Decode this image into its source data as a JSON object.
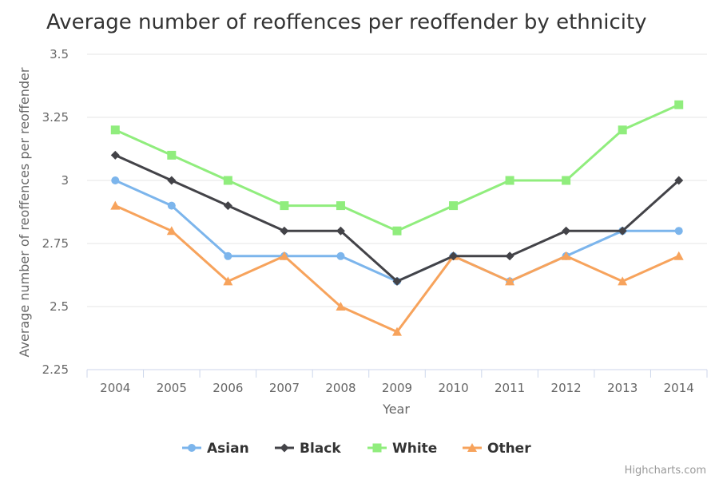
{
  "chart_data": {
    "type": "line",
    "title": "Average number of reoffences per reoffender by ethnicity",
    "xlabel": "Year",
    "ylabel": "Average number of reoffences per reoffender",
    "categories": [
      "2004",
      "2005",
      "2006",
      "2007",
      "2008",
      "2009",
      "2010",
      "2011",
      "2012",
      "2013",
      "2014"
    ],
    "ylim": [
      2.25,
      3.5
    ],
    "yticks": [
      2.25,
      2.5,
      2.75,
      3,
      3.25,
      3.5
    ],
    "ytick_labels": [
      "2.25",
      "2.5",
      "2.75",
      "3",
      "3.25",
      "3.5"
    ],
    "grid": true,
    "legend_position": "bottom-center",
    "series": [
      {
        "name": "Asian",
        "color": "#7cb5ec",
        "marker": "circle",
        "values": [
          3.0,
          2.9,
          2.7,
          2.7,
          2.7,
          2.6,
          2.7,
          2.6,
          2.7,
          2.8,
          2.8
        ]
      },
      {
        "name": "Black",
        "color": "#434348",
        "marker": "diamond",
        "values": [
          3.1,
          3.0,
          2.9,
          2.8,
          2.8,
          2.6,
          2.7,
          2.7,
          2.8,
          2.8,
          3.0
        ]
      },
      {
        "name": "White",
        "color": "#90ed7d",
        "marker": "square",
        "values": [
          3.2,
          3.1,
          3.0,
          2.9,
          2.9,
          2.8,
          2.9,
          3.0,
          3.0,
          3.2,
          3.3
        ]
      },
      {
        "name": "Other",
        "color": "#f7a35c",
        "marker": "triangle",
        "values": [
          2.9,
          2.8,
          2.6,
          2.7,
          2.5,
          2.4,
          2.7,
          2.6,
          2.7,
          2.6,
          2.7
        ]
      }
    ]
  },
  "credits": "Highcharts.com"
}
